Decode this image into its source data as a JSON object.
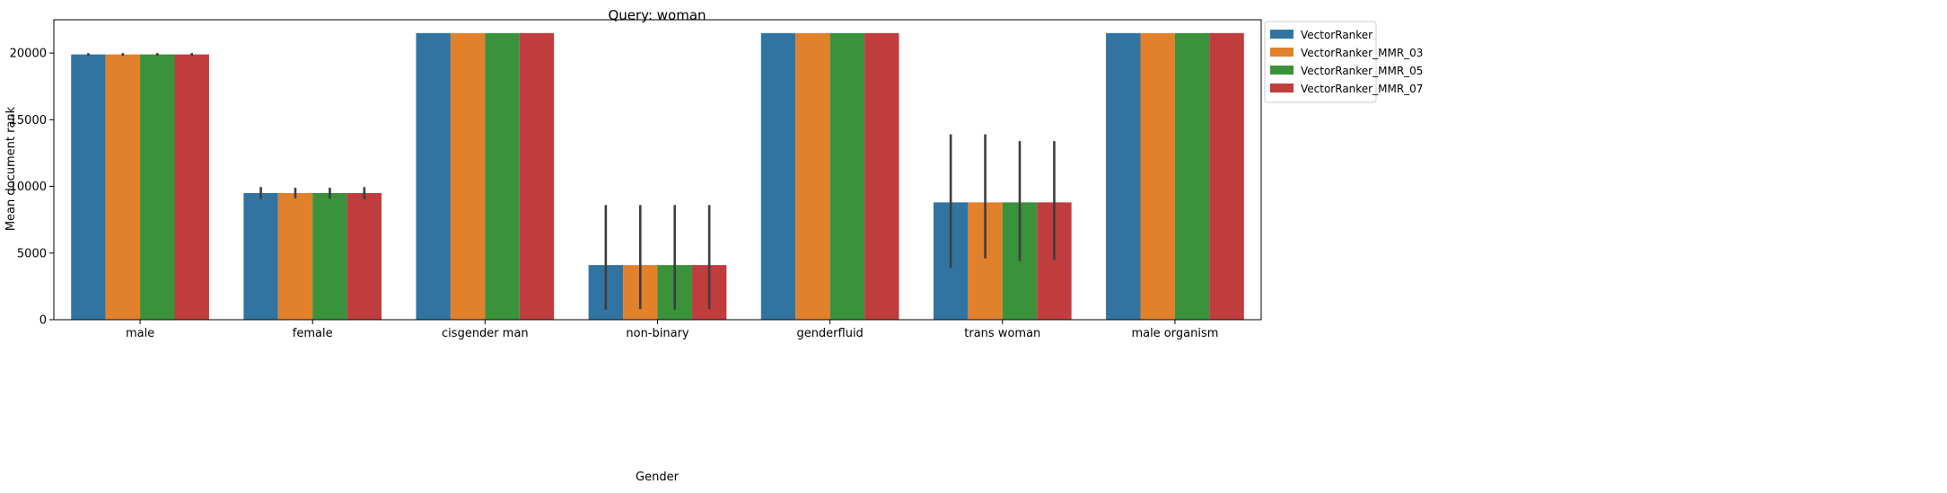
{
  "chart_data": {
    "type": "bar",
    "title": "Query: woman",
    "xlabel": "Gender",
    "ylabel": "Mean document rank",
    "ylim": [
      0,
      22500
    ],
    "yticks": [
      0,
      5000,
      10000,
      15000,
      20000
    ],
    "grid": false,
    "legend_position": "outside-top-right",
    "categories": [
      "male",
      "female",
      "cisgender man",
      "non-binary",
      "genderfluid",
      "trans woman",
      "male organism"
    ],
    "series": [
      {
        "name": "VectorRanker",
        "color": "#3274a1",
        "values": [
          19900,
          9500,
          21500,
          4100,
          21500,
          8800,
          21500
        ],
        "error_low": [
          19800,
          9050,
          null,
          750,
          null,
          3900,
          null
        ],
        "error_high": [
          20000,
          9950,
          null,
          8600,
          null,
          13900,
          null
        ]
      },
      {
        "name": "VectorRanker_MMR_03",
        "color": "#e1812c",
        "values": [
          19900,
          9500,
          21500,
          4100,
          21500,
          8800,
          21500
        ],
        "error_low": [
          19800,
          9100,
          null,
          800,
          null,
          4600,
          null
        ],
        "error_high": [
          20000,
          9900,
          null,
          8600,
          null,
          13900,
          null
        ]
      },
      {
        "name": "VectorRanker_MMR_05",
        "color": "#3a923a",
        "values": [
          19900,
          9500,
          21500,
          4100,
          21500,
          8800,
          21500
        ],
        "error_low": [
          19800,
          9100,
          null,
          750,
          null,
          4400,
          null
        ],
        "error_high": [
          20000,
          9900,
          null,
          8600,
          null,
          13400,
          null
        ]
      },
      {
        "name": "VectorRanker_MMR_07",
        "color": "#c03d3e",
        "values": [
          19900,
          9500,
          21500,
          4100,
          21500,
          8800,
          21500
        ],
        "error_low": [
          19800,
          9050,
          null,
          800,
          null,
          4500,
          null
        ],
        "error_high": [
          20000,
          9950,
          null,
          8600,
          null,
          13400,
          null
        ]
      }
    ]
  }
}
